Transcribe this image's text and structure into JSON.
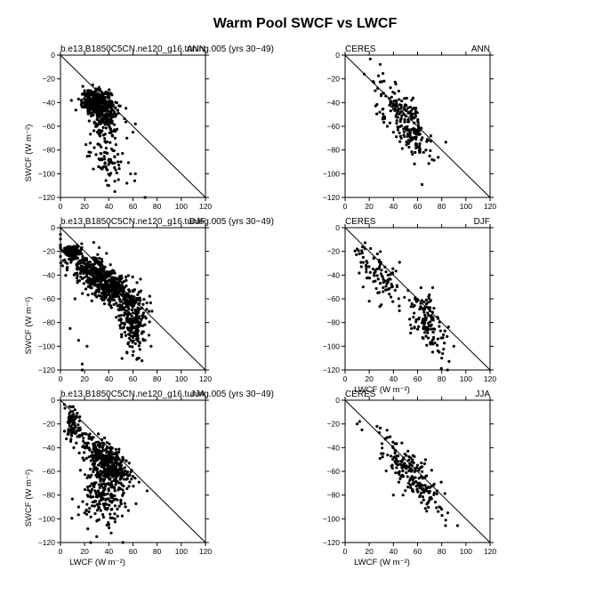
{
  "figure": {
    "title": "Warm Pool SWCF vs LWCF"
  },
  "chart_data": [
    {
      "type": "scatter",
      "left_label": "b.e13.B1850C5CN.ne120_g16.tuning.005 (yrs 30−49)",
      "right_label": "ANN",
      "xlabel": "",
      "ylabel": "SWCF (W m⁻²)",
      "xlim": [
        0,
        120
      ],
      "ylim": [
        -120,
        0
      ],
      "xticks": [
        "0",
        "20",
        "40",
        "60",
        "80",
        "100",
        "120"
      ],
      "yticks": [
        "0",
        "−20",
        "−40",
        "−60",
        "−80",
        "−100",
        "−120"
      ],
      "reference_line": [
        [
          0,
          0
        ],
        [
          120,
          -120
        ]
      ],
      "clusters": [
        {
          "cx": 30,
          "cy": -40,
          "sx": 6,
          "sy": 5,
          "n": 420
        },
        {
          "cx": 38,
          "cy": -55,
          "sx": 6,
          "sy": 9,
          "n": 120
        },
        {
          "cx": 38,
          "cy": -85,
          "sx": 8,
          "sy": 10,
          "n": 70
        }
      ],
      "points": [
        [
          20,
          -30
        ],
        [
          22,
          -32
        ],
        [
          18,
          -33
        ],
        [
          25,
          -30
        ],
        [
          62,
          -58
        ],
        [
          60,
          -65
        ],
        [
          55,
          -70
        ],
        [
          70,
          -120
        ],
        [
          58,
          -100
        ],
        [
          48,
          -105
        ],
        [
          45,
          -115
        ],
        [
          55,
          -108
        ],
        [
          28,
          -78
        ],
        [
          24,
          -85
        ],
        [
          40,
          -110
        ],
        [
          50,
          -90
        ],
        [
          62,
          -100
        ]
      ]
    },
    {
      "type": "scatter",
      "left_label": "CERES",
      "right_label": "ANN",
      "xlabel": "",
      "ylabel": "",
      "xlim": [
        0,
        120
      ],
      "ylim": [
        -120,
        0
      ],
      "xticks": [
        "0",
        "20",
        "40",
        "60",
        "80",
        "100",
        "120"
      ],
      "yticks": [
        "0",
        "−20",
        "−40",
        "−60",
        "−80",
        "−100",
        "−120"
      ],
      "reference_line": [
        [
          0,
          0
        ],
        [
          120,
          -120
        ]
      ],
      "clusters": [
        {
          "cx": 50,
          "cy": -55,
          "sx": 11,
          "sy": 11,
          "n": 220,
          "slope": -1.1
        }
      ],
      "points": [
        [
          25,
          -30
        ],
        [
          27,
          -28
        ],
        [
          30,
          -33
        ],
        [
          70,
          -85
        ],
        [
          72,
          -88
        ],
        [
          65,
          -82
        ],
        [
          62,
          -80
        ],
        [
          35,
          -60
        ],
        [
          40,
          -65
        ]
      ]
    },
    {
      "type": "scatter",
      "left_label": "b.e13.B1850C5CN.ne120_g16.tuning.005 (yrs 30−49)",
      "right_label": "DJF",
      "xlabel": "",
      "ylabel": "SWCF (W m⁻²)",
      "xlim": [
        0,
        120
      ],
      "ylim": [
        -120,
        0
      ],
      "xticks": [
        "0",
        "20",
        "40",
        "60",
        "80",
        "100",
        "120"
      ],
      "yticks": [
        "0",
        "−20",
        "−40",
        "−60",
        "−80",
        "−100",
        "−120"
      ],
      "reference_line": [
        [
          0,
          0
        ],
        [
          120,
          -120
        ]
      ],
      "clusters": [
        {
          "cx": 10,
          "cy": -20,
          "sx": 3,
          "sy": 2,
          "n": 180
        },
        {
          "cx": 35,
          "cy": -45,
          "sx": 14,
          "sy": 8,
          "n": 600,
          "slope": -0.65
        },
        {
          "cx": 60,
          "cy": -80,
          "sx": 6,
          "sy": 12,
          "n": 220
        }
      ],
      "points": [
        [
          18,
          -115
        ],
        [
          18,
          -120
        ],
        [
          8,
          -85
        ],
        [
          15,
          -95
        ],
        [
          22,
          -100
        ],
        [
          75,
          -100
        ],
        [
          70,
          -95
        ],
        [
          65,
          -110
        ],
        [
          55,
          -105
        ],
        [
          12,
          -60
        ],
        [
          9,
          -28
        ],
        [
          6,
          -22
        ]
      ]
    },
    {
      "type": "scatter",
      "left_label": "CERES",
      "right_label": "DJF",
      "xlabel": "LWCF (W m⁻²)",
      "ylabel": "",
      "xlim": [
        0,
        120
      ],
      "ylim": [
        -120,
        0
      ],
      "xticks": [
        "0",
        "20",
        "40",
        "60",
        "80",
        "100",
        "120"
      ],
      "yticks": [
        "0",
        "−20",
        "−40",
        "−60",
        "−80",
        "−100",
        "−120"
      ],
      "reference_line": [
        [
          0,
          0
        ],
        [
          120,
          -120
        ]
      ],
      "clusters": [
        {
          "cx": 30,
          "cy": -42,
          "sx": 10,
          "sy": 10,
          "n": 90,
          "slope": -0.9
        },
        {
          "cx": 68,
          "cy": -78,
          "sx": 8,
          "sy": 12,
          "n": 130,
          "slope": -1.0
        }
      ],
      "points": [
        [
          10,
          -18
        ],
        [
          12,
          -22
        ],
        [
          15,
          -25
        ],
        [
          20,
          -62
        ],
        [
          15,
          -50
        ],
        [
          30,
          -65
        ],
        [
          90,
          -100
        ],
        [
          80,
          -110
        ],
        [
          78,
          -105
        ],
        [
          55,
          -85
        ],
        [
          45,
          -70
        ]
      ]
    },
    {
      "type": "scatter",
      "left_label": "b.e13.B1850C5CN.ne120_g16.tuning.005 (yrs 30−49)",
      "right_label": "JJA",
      "xlabel": "LWCF (W m⁻²)",
      "ylabel": "SWCF (W m⁻²)",
      "xlim": [
        0,
        120
      ],
      "ylim": [
        -120,
        0
      ],
      "xticks": [
        "0",
        "20",
        "40",
        "60",
        "80",
        "100",
        "120"
      ],
      "yticks": [
        "0",
        "−20",
        "−40",
        "−60",
        "−80",
        "−100",
        "−120"
      ],
      "reference_line": [
        [
          0,
          0
        ],
        [
          120,
          -120
        ]
      ],
      "clusters": [
        {
          "cx": 10,
          "cy": -20,
          "sx": 3,
          "sy": 7,
          "n": 90
        },
        {
          "cx": 38,
          "cy": -50,
          "sx": 10,
          "sy": 7,
          "n": 350,
          "slope": -0.7
        },
        {
          "cx": 35,
          "cy": -75,
          "sx": 9,
          "sy": 14,
          "n": 230
        }
      ],
      "points": [
        [
          25,
          -120
        ],
        [
          30,
          -115
        ],
        [
          40,
          -105
        ],
        [
          45,
          -100
        ],
        [
          8,
          -10
        ],
        [
          12,
          -8
        ],
        [
          20,
          -95
        ],
        [
          15,
          -90
        ],
        [
          50,
          -70
        ],
        [
          42,
          -112
        ]
      ]
    },
    {
      "type": "scatter",
      "left_label": "CERES",
      "right_label": "JJA",
      "xlabel": "LWCF (W m⁻²)",
      "ylabel": "",
      "xlim": [
        0,
        120
      ],
      "ylim": [
        -120,
        0
      ],
      "xticks": [
        "0",
        "20",
        "40",
        "60",
        "80",
        "100",
        "120"
      ],
      "yticks": [
        "0",
        "−20",
        "−40",
        "−60",
        "−80",
        "−100",
        "−120"
      ],
      "reference_line": [
        [
          0,
          0
        ],
        [
          120,
          -120
        ]
      ],
      "clusters": [
        {
          "cx": 55,
          "cy": -62,
          "sx": 12,
          "sy": 10,
          "n": 200,
          "slope": -1.0
        }
      ],
      "points": [
        [
          10,
          -20
        ],
        [
          12,
          -18
        ],
        [
          14,
          -25
        ],
        [
          30,
          -45
        ],
        [
          80,
          -92
        ],
        [
          85,
          -95
        ],
        [
          78,
          -90
        ],
        [
          40,
          -80
        ],
        [
          48,
          -80
        ]
      ]
    }
  ]
}
